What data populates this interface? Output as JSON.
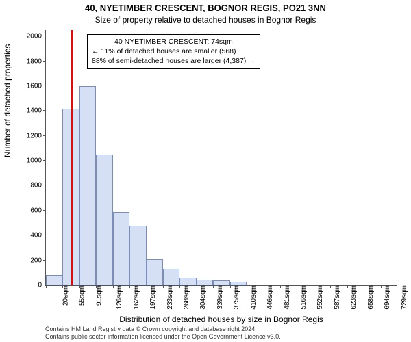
{
  "title": "40, NYETIMBER CRESCENT, BOGNOR REGIS, PO21 3NN",
  "subtitle": "Size of property relative to detached houses in Bognor Regis",
  "ylabel": "Number of detached properties",
  "xlabel": "Distribution of detached houses by size in Bognor Regis",
  "footer1": "Contains HM Land Registry data © Crown copyright and database right 2024.",
  "footer2": "Contains public sector information licensed under the Open Government Licence v3.0.",
  "chart": {
    "type": "histogram",
    "ymax": 2050,
    "yticks": [
      0,
      200,
      400,
      600,
      800,
      1000,
      1200,
      1400,
      1600,
      1800,
      2000
    ],
    "bar_fill": "#d6e0f5",
    "bar_stroke": "#7a8db8",
    "marker_color": "#ff0000",
    "marker_x_value": 74,
    "x_start": 20,
    "x_step": 35.5,
    "bars": [
      {
        "label": "20sqm",
        "value": 80
      },
      {
        "label": "55sqm",
        "value": 1420
      },
      {
        "label": "91sqm",
        "value": 1600
      },
      {
        "label": "126sqm",
        "value": 1050
      },
      {
        "label": "162sqm",
        "value": 590
      },
      {
        "label": "197sqm",
        "value": 480
      },
      {
        "label": "233sqm",
        "value": 210
      },
      {
        "label": "268sqm",
        "value": 130
      },
      {
        "label": "304sqm",
        "value": 60
      },
      {
        "label": "339sqm",
        "value": 45
      },
      {
        "label": "375sqm",
        "value": 40
      },
      {
        "label": "410sqm",
        "value": 30
      },
      {
        "label": "446sqm",
        "value": 0
      },
      {
        "label": "481sqm",
        "value": 0
      },
      {
        "label": "516sqm",
        "value": 0
      },
      {
        "label": "552sqm",
        "value": 0
      },
      {
        "label": "587sqm",
        "value": 0
      },
      {
        "label": "623sqm",
        "value": 0
      },
      {
        "label": "658sqm",
        "value": 0
      },
      {
        "label": "694sqm",
        "value": 0
      },
      {
        "label": "729sqm",
        "value": 0
      }
    ],
    "annotation": {
      "line1": "40 NYETIMBER CRESCENT: 74sqm",
      "line2": "← 11% of detached houses are smaller (568)",
      "line3": "88% of semi-detached houses are larger (4,387) →"
    }
  }
}
